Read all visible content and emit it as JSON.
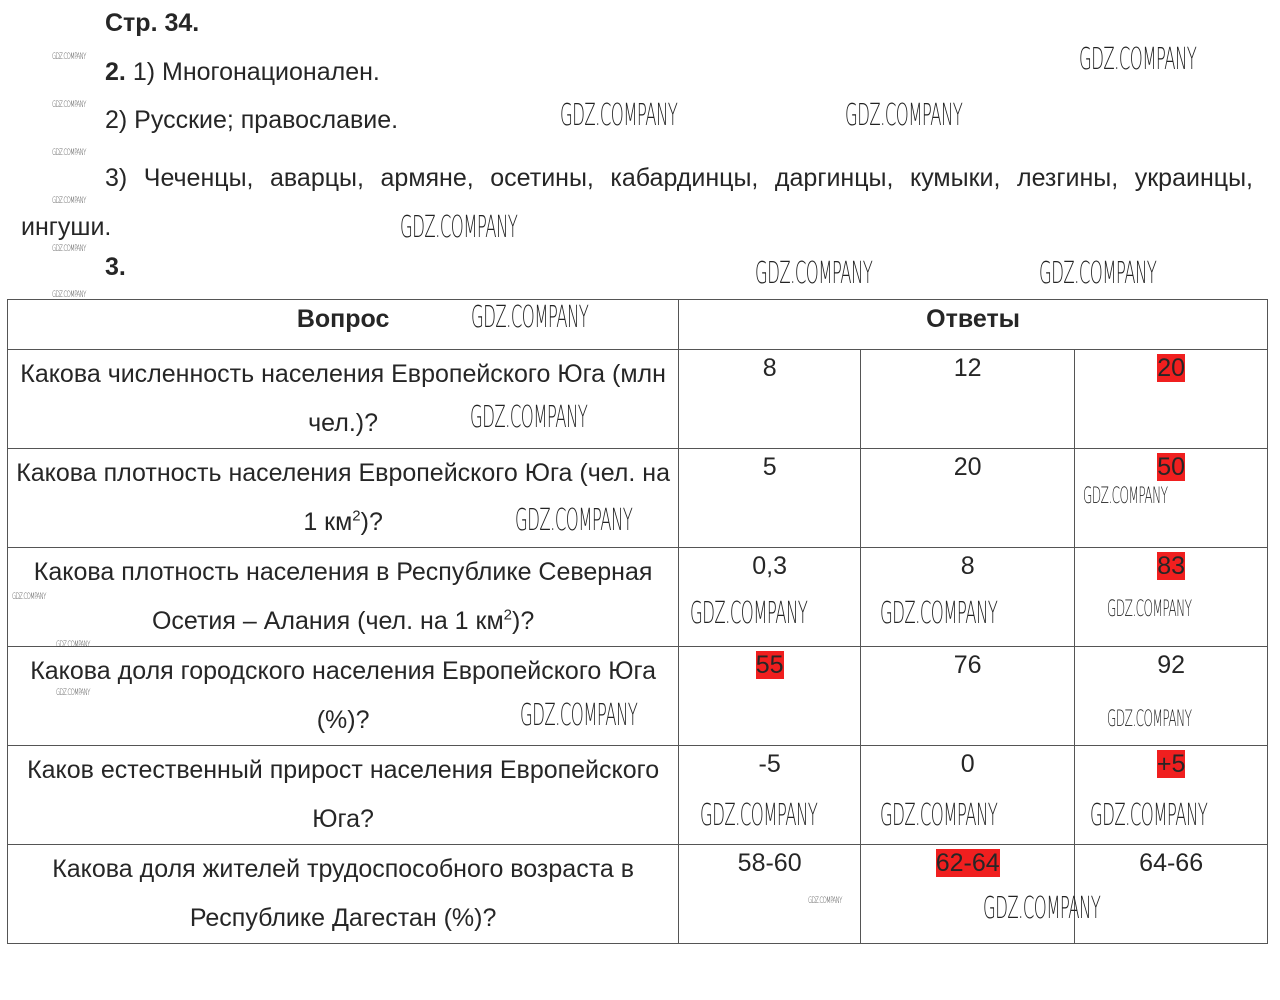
{
  "page_header": "Стр. 34.",
  "task2": {
    "number": "2.",
    "item1": "1) Многонационален.",
    "item2": "2) Русские; православие.",
    "item3": "3) Чеченцы, аварцы, армяне, осетины, кабардинцы, даргинцы, кумыки, лезгины, украинцы, ингуши."
  },
  "task3": {
    "number": "3."
  },
  "table": {
    "headers": [
      "Вопрос",
      "Ответы"
    ],
    "highlight_color": "#f01f1f",
    "rows": [
      {
        "question": "Какова численность населения Европейского Юга (млн чел.)?",
        "answers": [
          "8",
          "12",
          "20"
        ],
        "selected": 2
      },
      {
        "question_parts": [
          "Какова плотность населения Европейского Юга (чел. на 1 км",
          "2",
          ")?"
        ],
        "answers": [
          "5",
          "20",
          "50"
        ],
        "selected": 2
      },
      {
        "question_parts": [
          "Какова плотность населения в Республике Северная Осетия – Алания (чел. на 1 км",
          "2",
          ")?"
        ],
        "answers": [
          "0,3",
          "8",
          "83"
        ],
        "selected": 2
      },
      {
        "question": "Какова доля городского населения Европейского Юга (%)?",
        "answers": [
          "55",
          "76",
          "92"
        ],
        "selected": 0
      },
      {
        "question": "Каков естественный прирост населения Европейского Юга?",
        "answers": [
          "-5",
          "0",
          "+5"
        ],
        "selected": 2
      },
      {
        "question": "Какова доля жителей трудоспособного возраста в Республике Дагестан (%)?",
        "answers": [
          "58-60",
          "62-64",
          "64-66"
        ],
        "selected": 1
      }
    ]
  },
  "watermark": "GDZ.COMPANY"
}
